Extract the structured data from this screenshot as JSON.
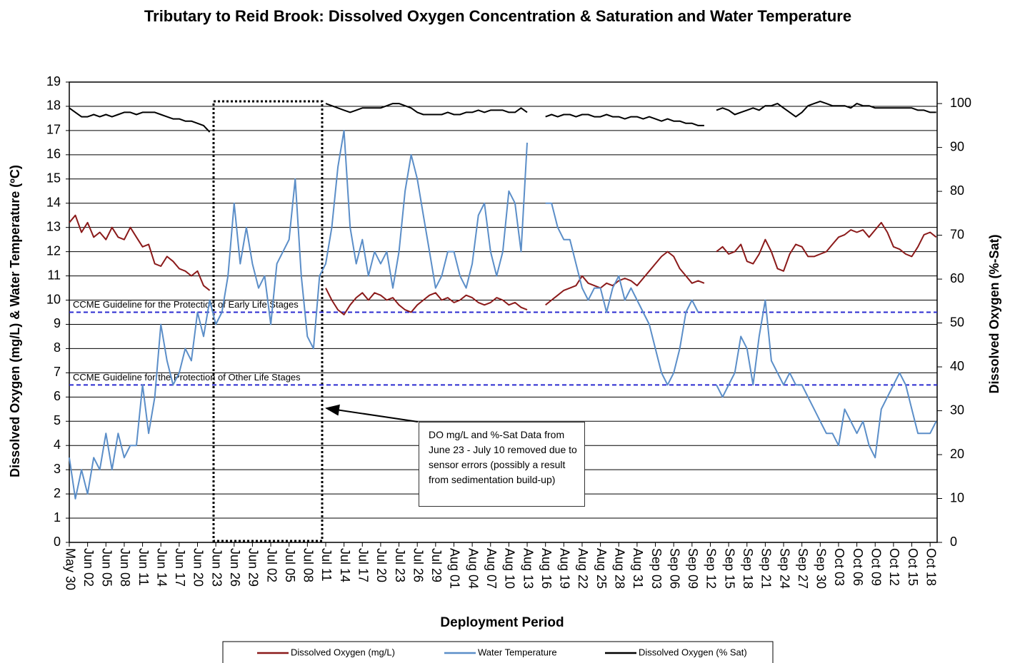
{
  "chart_data": {
    "type": "line",
    "title": "Tributary to Reid Brook: Dissolved Oxygen Concentration & Saturation and Water Temperature",
    "xlabel": "Deployment Period",
    "ylabel": "Dissolved Oxygen (mg/L) & Water Temperature (ºC)",
    "y2label": "Dissolved Oxygen (%-Sat)",
    "categories": [
      "May 30",
      null,
      null,
      "Jun 02",
      null,
      null,
      "Jun 05",
      null,
      null,
      "Jun 08",
      null,
      null,
      "Jun 11",
      null,
      null,
      "Jun 14",
      null,
      null,
      "Jun 17",
      null,
      null,
      "Jun 20",
      null,
      null,
      "Jun 23",
      null,
      null,
      "Jun 26",
      null,
      null,
      "Jun 29",
      null,
      null,
      "Jul 02",
      null,
      null,
      "Jul 05",
      null,
      null,
      "Jul 08",
      null,
      null,
      "Jul 11",
      null,
      null,
      "Jul 14",
      null,
      null,
      "Jul 17",
      null,
      null,
      "Jul 20",
      null,
      null,
      "Jul 23",
      null,
      null,
      "Jul 26",
      null,
      null,
      "Jul 29",
      null,
      null,
      "Aug 01",
      null,
      null,
      "Aug 04",
      null,
      null,
      "Aug 07",
      null,
      null,
      "Aug 10",
      null,
      null,
      "Aug 13",
      null,
      null,
      "Aug 16",
      null,
      null,
      "Aug 19",
      null,
      null,
      "Aug 22",
      null,
      null,
      "Aug 25",
      null,
      null,
      "Aug 28",
      null,
      null,
      "Aug 31",
      null,
      null,
      "Sep 03",
      null,
      null,
      "Sep 06",
      null,
      null,
      "Sep 09",
      null,
      null,
      "Sep 12",
      null,
      null,
      "Sep 15",
      null,
      null,
      "Sep 18",
      null,
      null,
      "Sep 21",
      null,
      null,
      "Sep 24",
      null,
      null,
      "Sep 27",
      null,
      null,
      "Sep 30",
      null,
      null,
      "Oct 03",
      null,
      null,
      "Oct 06",
      null,
      null,
      "Oct 09",
      null,
      null,
      "Oct 12",
      null,
      null,
      "Oct 15",
      null,
      null,
      "Oct 18",
      null
    ],
    "series": [
      {
        "name": "Dissolved Oxygen (mg/L)",
        "color": "#8b1a1a",
        "values": [
          13.2,
          13.5,
          12.8,
          13.2,
          12.6,
          12.8,
          12.5,
          13.0,
          12.6,
          12.5,
          13.0,
          12.6,
          12.2,
          12.3,
          11.5,
          11.4,
          11.8,
          11.6,
          11.3,
          11.2,
          11.0,
          11.2,
          10.6,
          10.4,
          null,
          null,
          null,
          null,
          null,
          null,
          null,
          null,
          null,
          null,
          null,
          null,
          null,
          null,
          null,
          null,
          null,
          null,
          10.5,
          10.0,
          9.6,
          9.4,
          9.8,
          10.1,
          10.3,
          10.0,
          10.3,
          10.2,
          10.0,
          10.1,
          9.8,
          9.6,
          9.5,
          9.8,
          10.0,
          10.2,
          10.3,
          10.0,
          10.1,
          9.9,
          10.0,
          10.2,
          10.1,
          9.9,
          9.8,
          9.9,
          10.1,
          10.0,
          9.8,
          9.9,
          9.7,
          9.6,
          null,
          null,
          9.8,
          10.0,
          10.2,
          10.4,
          10.5,
          10.6,
          11.0,
          10.7,
          10.6,
          10.5,
          10.7,
          10.6,
          10.8,
          10.9,
          10.8,
          10.6,
          10.9,
          11.2,
          11.5,
          11.8,
          12.0,
          11.8,
          11.3,
          11.0,
          10.7,
          10.8,
          10.7,
          null,
          12.0,
          12.2,
          11.9,
          12.0,
          12.3,
          11.6,
          11.5,
          11.9,
          12.5,
          12.0,
          11.3,
          11.2,
          11.9,
          12.3,
          12.2,
          11.8,
          11.8,
          11.9,
          12.0,
          12.3,
          12.6,
          12.7,
          12.9,
          12.8,
          12.9,
          12.6,
          12.9,
          13.2,
          12.8,
          12.2,
          12.1,
          11.9,
          11.8,
          12.2,
          12.7,
          12.8,
          12.6
        ]
      },
      {
        "name": "Water Temperature",
        "color": "#5b8ec8",
        "values": [
          3.5,
          1.8,
          3,
          2,
          3.5,
          3,
          4.5,
          3,
          4.5,
          3.5,
          4,
          4,
          6.5,
          4.5,
          6,
          9,
          7.5,
          6.5,
          7,
          8,
          7.5,
          9.5,
          8.5,
          10,
          9,
          9.5,
          11,
          14,
          11.5,
          13,
          11.5,
          10.5,
          11,
          9,
          11.5,
          12,
          12.5,
          15,
          11,
          8.5,
          8,
          11,
          11.5,
          13,
          15.5,
          17,
          13,
          11.5,
          12.5,
          11,
          12,
          11.5,
          12,
          10.5,
          12,
          14.5,
          16,
          15,
          13.5,
          12,
          10.5,
          11,
          12,
          12,
          11,
          10.5,
          11.5,
          13.5,
          14,
          12,
          11,
          12,
          14.5,
          14,
          12,
          16.5,
          null,
          null,
          14,
          14,
          13,
          12.5,
          12.5,
          11.5,
          10.5,
          10,
          10.5,
          10.5,
          9.5,
          10.5,
          11,
          10,
          10.5,
          10,
          9.5,
          9,
          8,
          7,
          6.5,
          7,
          8,
          9.5,
          10,
          9.5,
          null,
          null,
          6.5,
          6,
          6.5,
          7,
          8.5,
          8,
          6.5,
          8.5,
          10,
          7.5,
          7,
          6.5,
          7,
          6.5,
          6.5,
          6,
          5.5,
          5,
          4.5,
          4.5,
          4,
          5.5,
          5,
          4.5,
          5,
          4,
          3.5,
          5.5,
          6,
          6.5,
          7,
          6.5,
          5.5,
          4.5,
          4.5,
          4.5,
          5
        ]
      },
      {
        "name": "Dissolved Oxygen (% Sat)",
        "color": "#000000",
        "axis": "y2",
        "values": [
          99,
          98,
          97,
          97,
          97.5,
          97,
          97.5,
          97,
          97.5,
          98,
          98,
          97.5,
          98,
          98,
          98,
          97.5,
          97,
          96.5,
          96.5,
          96,
          96,
          95.5,
          95,
          93.5,
          null,
          null,
          null,
          null,
          null,
          null,
          null,
          null,
          null,
          null,
          null,
          null,
          null,
          null,
          null,
          null,
          null,
          null,
          100,
          99.5,
          99,
          98.5,
          98,
          98.5,
          99,
          99,
          99,
          99,
          99.5,
          100,
          100,
          99.5,
          99,
          98,
          97.5,
          97.5,
          97.5,
          97.5,
          98,
          97.5,
          97.5,
          98,
          98,
          98.5,
          98,
          98.5,
          98.5,
          98.5,
          98,
          98,
          99,
          98,
          null,
          null,
          97,
          97.5,
          97,
          97.5,
          97.5,
          97,
          97.5,
          97.5,
          97,
          97,
          97.5,
          97,
          97,
          96.5,
          97,
          97,
          96.5,
          97,
          96.5,
          96,
          96.5,
          96,
          96,
          95.5,
          95.5,
          95,
          95,
          null,
          98.5,
          99,
          98.5,
          97.5,
          98,
          98.5,
          99,
          98.5,
          99.5,
          99.5,
          100,
          99,
          98,
          97,
          98,
          99.5,
          100,
          100.5,
          100,
          99.5,
          99.5,
          99.5,
          99,
          100,
          99.5,
          99.5,
          99,
          99,
          99,
          99,
          99,
          99,
          99,
          98.5,
          98.5,
          98,
          98
        ]
      }
    ],
    "guidelines": [
      {
        "label": "CCME Guideline for the Protection of Early Life Stages",
        "value": 9.5,
        "color": "#2b2bd0"
      },
      {
        "label": "CCME Guideline for the Protection of Other Life Stages",
        "value": 6.5,
        "color": "#2b2bd0"
      }
    ],
    "annotation": "DO mg/L and %-Sat Data from June 23 - July 10 removed due to sensor errors (possibly a result from sedimentation build-up)",
    "ylim": [
      0,
      19
    ],
    "yticks": [
      0,
      1,
      2,
      3,
      4,
      5,
      6,
      7,
      8,
      9,
      10,
      11,
      12,
      13,
      14,
      15,
      16,
      17,
      18,
      19
    ],
    "y2lim": [
      0,
      104.9
    ],
    "y2ticks": [
      0,
      10,
      20,
      30,
      40,
      50,
      60,
      70,
      80,
      90,
      100
    ],
    "grid": true,
    "legend": "bottom"
  }
}
